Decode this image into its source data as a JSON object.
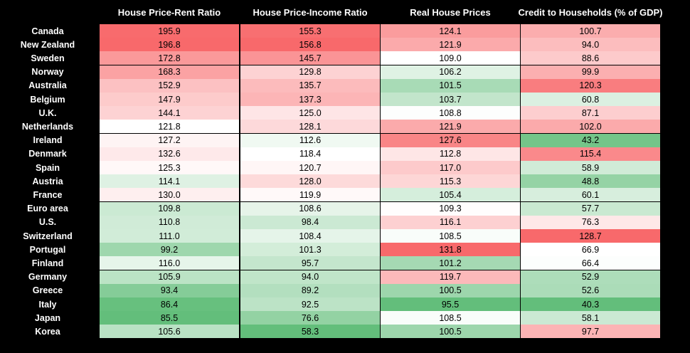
{
  "chart_data": {
    "type": "table",
    "columns": [
      "House Price-Rent Ratio",
      "House Price-Income Ratio",
      "Real House Prices",
      "Credit to Households (% of GDP)"
    ],
    "rows": [
      "Canada",
      "New Zealand",
      "Sweden",
      "Norway",
      "Australia",
      "Belgium",
      "U.K.",
      "Netherlands",
      "Ireland",
      "Denmark",
      "Spain",
      "Austria",
      "France",
      "Euro area",
      "U.S.",
      "Switzerland",
      "Portugal",
      "Finland",
      "Germany",
      "Greece",
      "Italy",
      "Japan",
      "Korea"
    ],
    "values": [
      [
        "195.9",
        "155.3",
        "124.1",
        "100.7"
      ],
      [
        "196.8",
        "156.8",
        "121.9",
        "94.0"
      ],
      [
        "172.8",
        "145.7",
        "109.0",
        "88.6"
      ],
      [
        "168.3",
        "129.8",
        "106.2",
        "99.9"
      ],
      [
        "152.9",
        "135.7",
        "101.5",
        "120.3"
      ],
      [
        "147.9",
        "137.3",
        "103.7",
        "60.8"
      ],
      [
        "144.1",
        "125.0",
        "108.8",
        "87.1"
      ],
      [
        "121.8",
        "128.1",
        "121.9",
        "102.0"
      ],
      [
        "127.2",
        "112.6",
        "127.6",
        "43.2"
      ],
      [
        "132.6",
        "118.4",
        "112.8",
        "115.4"
      ],
      [
        "125.3",
        "120.7",
        "117.0",
        "58.9"
      ],
      [
        "114.1",
        "128.0",
        "115.3",
        "48.8"
      ],
      [
        "130.0",
        "119.9",
        "105.4",
        "60.1"
      ],
      [
        "109.8",
        "108.6",
        "109.3",
        "57.7"
      ],
      [
        "110.8",
        "98.4",
        "116.1",
        "76.3"
      ],
      [
        "111.0",
        "108.4",
        "108.5",
        "128.7"
      ],
      [
        "99.2",
        "101.3",
        "131.8",
        "66.9"
      ],
      [
        "116.0",
        "95.7",
        "101.2",
        "66.4"
      ],
      [
        "105.9",
        "94.0",
        "119.7",
        "52.9"
      ],
      [
        "93.4",
        "89.2",
        "100.5",
        "52.6"
      ],
      [
        "86.4",
        "92.5",
        "95.5",
        "40.3"
      ],
      [
        "85.5",
        "76.6",
        "108.5",
        "58.1"
      ],
      [
        "105.6",
        "58.3",
        "100.5",
        "97.7"
      ]
    ],
    "color_scale": {
      "low": "#63be7b",
      "mid": "#ffffff",
      "high": "#f8696b"
    }
  }
}
